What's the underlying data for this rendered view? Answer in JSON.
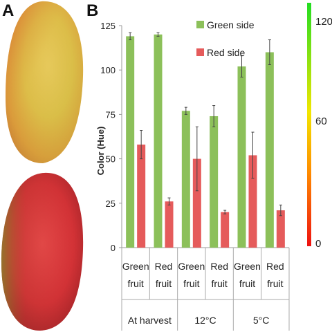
{
  "panels": {
    "a": "A",
    "b": "B"
  },
  "chart_data": {
    "type": "bar",
    "ylabel": "Color (Hue)",
    "ylim": [
      0,
      125
    ],
    "yticks": [
      "0",
      "25",
      "50",
      "75",
      "100",
      "125"
    ],
    "grid": false,
    "legend_position": "top-right",
    "categories": [
      {
        "line1": "Green",
        "line2": "fruit"
      },
      {
        "line1": "Red",
        "line2": "fruit"
      },
      {
        "line1": "Green",
        "line2": "fruit"
      },
      {
        "line1": "Red",
        "line2": "fruit"
      },
      {
        "line1": "Green",
        "line2": "fruit"
      },
      {
        "line1": "Red",
        "line2": "fruit"
      }
    ],
    "groups": [
      "At harvest",
      "12°C",
      "5°C"
    ],
    "series": [
      {
        "name": "Green side",
        "color": "#8cc05a",
        "values": [
          119,
          120,
          77,
          74,
          102,
          110
        ],
        "errors": [
          2,
          1,
          2,
          6,
          6,
          7
        ]
      },
      {
        "name": "Red side",
        "color": "#e55b5b",
        "values": [
          58,
          26,
          50,
          20,
          52,
          21
        ],
        "errors": [
          8,
          2,
          18,
          1,
          13,
          3
        ]
      }
    ]
  },
  "colorbar": {
    "labels": [
      "120",
      "60",
      "0"
    ],
    "colors": [
      "#22dd22",
      "#f2e600",
      "#ff8a00",
      "#ee1111"
    ]
  }
}
